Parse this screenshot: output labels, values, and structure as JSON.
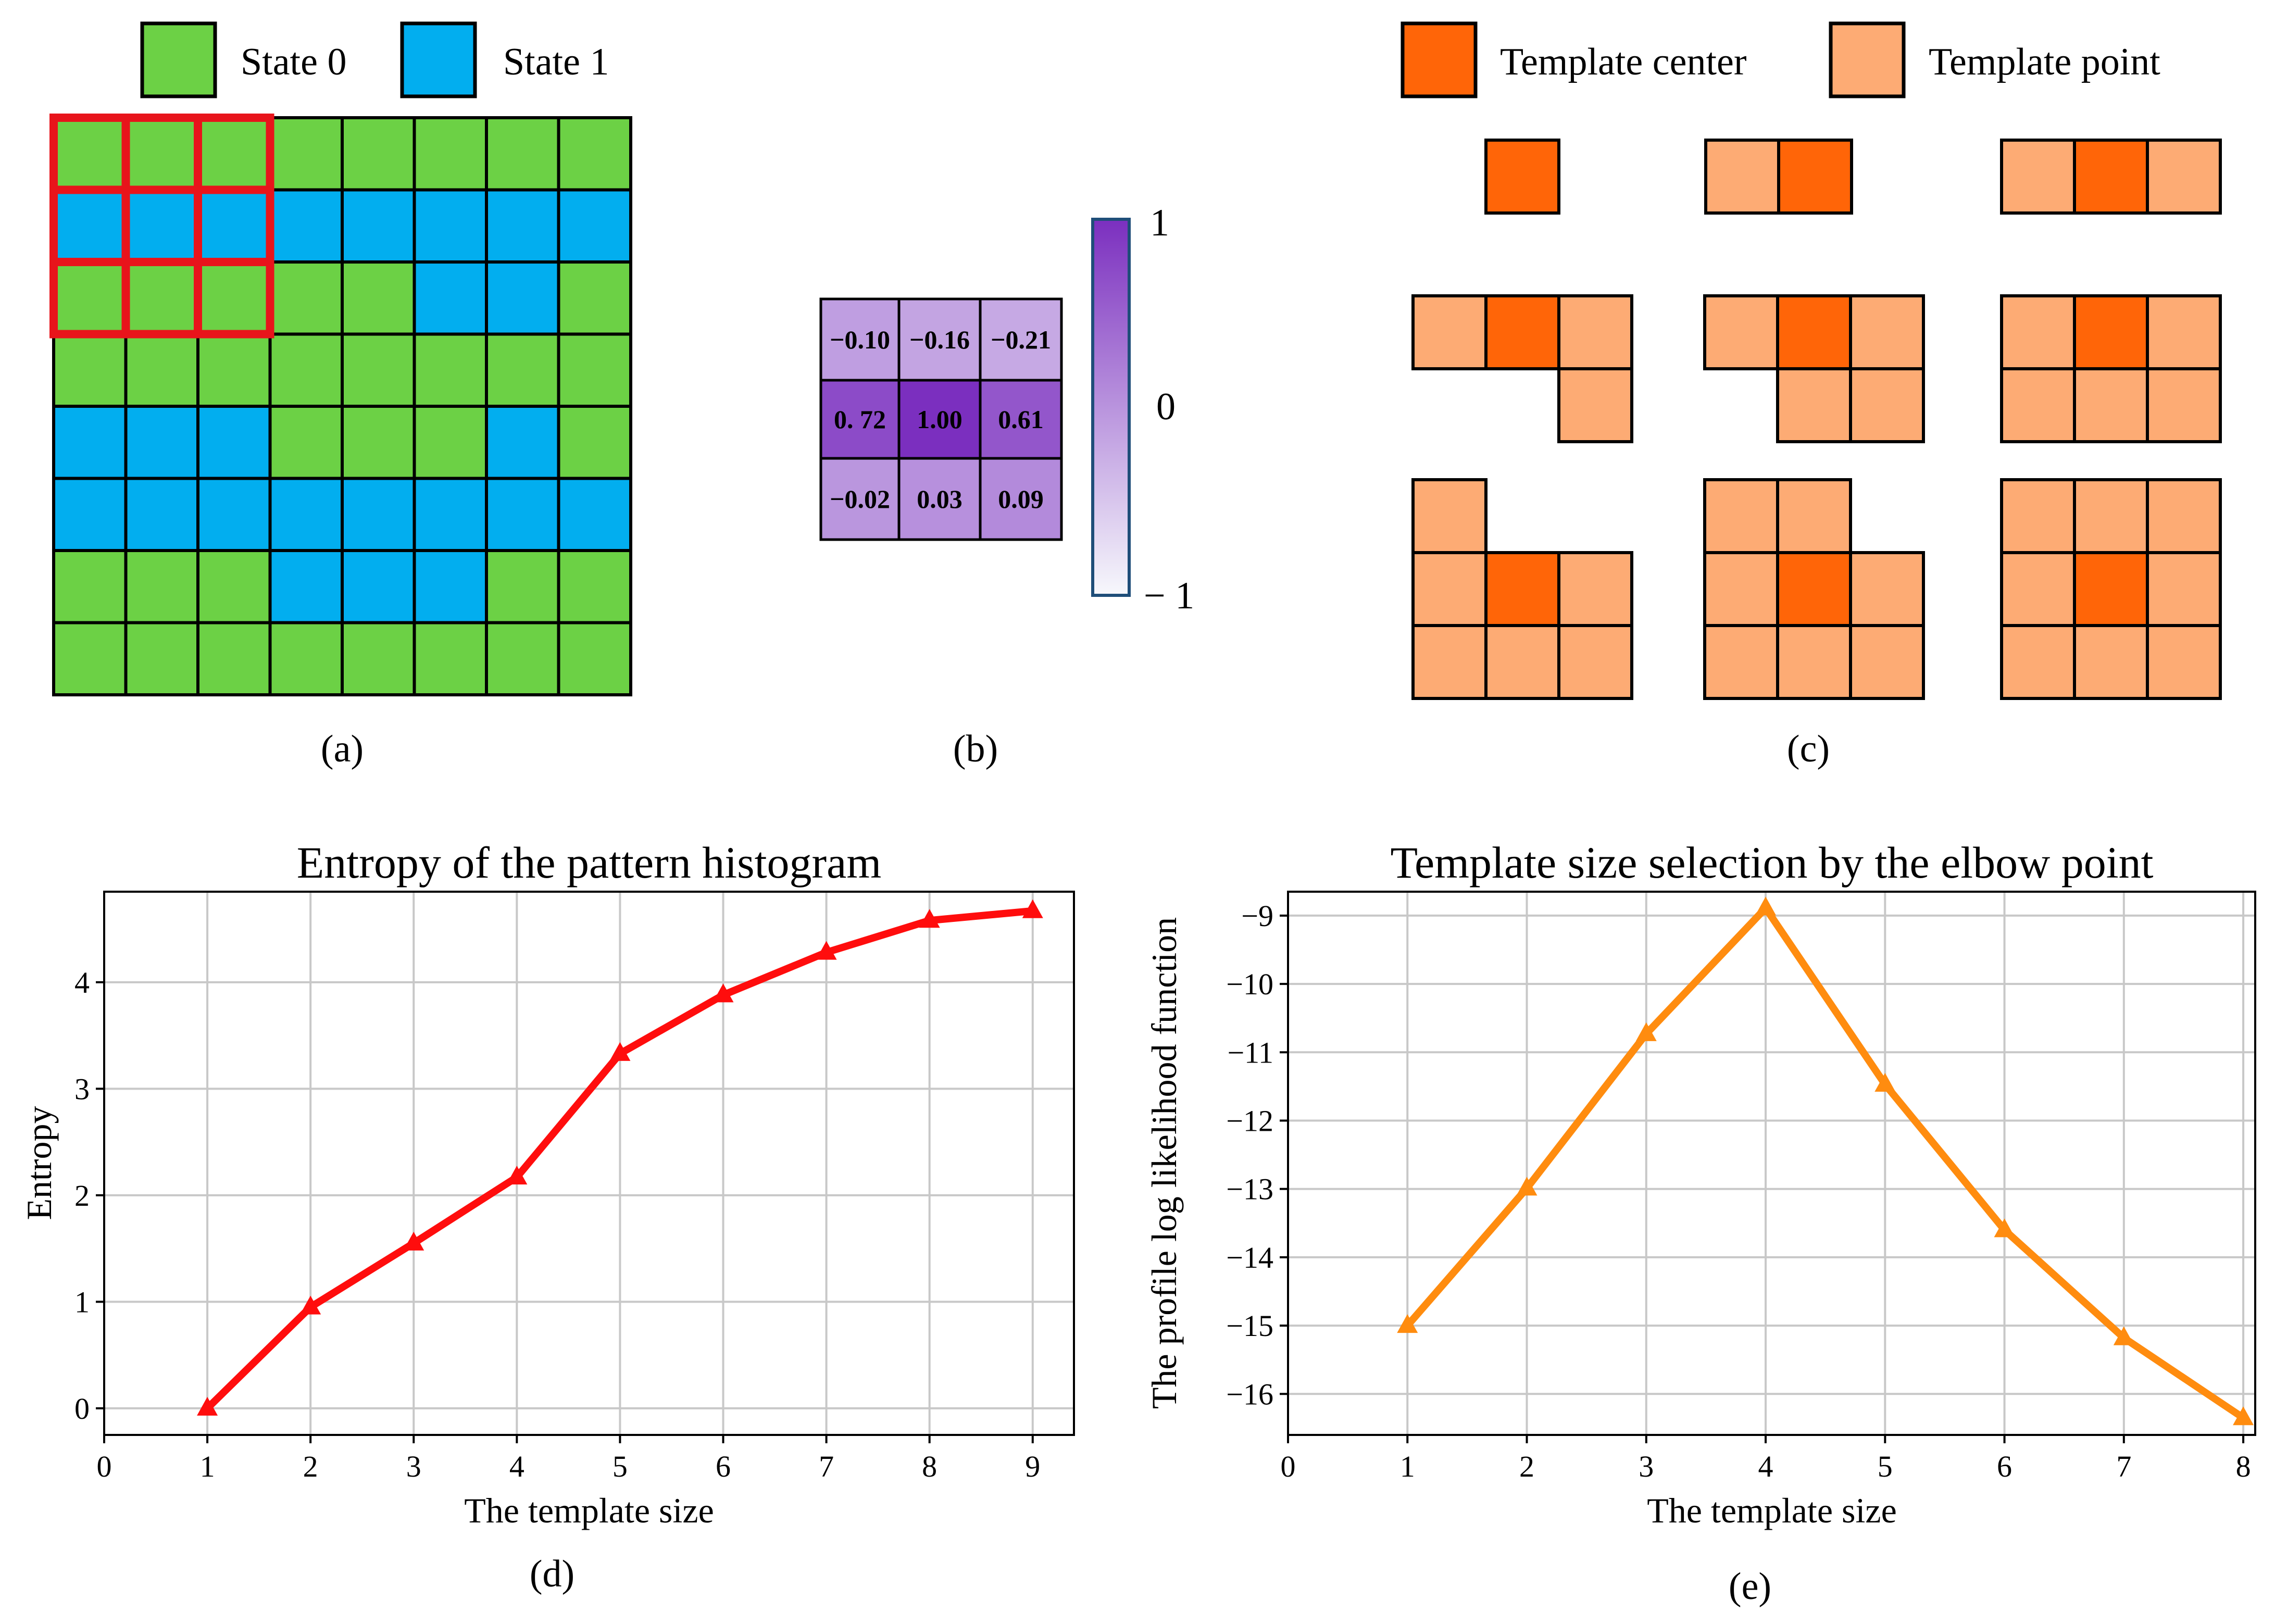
{
  "colors": {
    "state0": "#6cd145",
    "state1": "#02aeef",
    "highlight": "#e8141b",
    "center": "#ff6508",
    "point": "#fdab74",
    "curve_d": "#ff0d0d",
    "curve_e": "#ff8c0f",
    "cb_top": "#7b2fbf",
    "cb_bottom": "#f7f8fc",
    "cb_frame": "#1f4e79"
  },
  "panel_a": {
    "caption": "(a)",
    "legend": [
      "State 0",
      "State 1"
    ],
    "grid": [
      [
        0,
        0,
        0,
        0,
        0,
        0,
        0,
        0
      ],
      [
        1,
        1,
        1,
        1,
        1,
        1,
        1,
        1
      ],
      [
        0,
        0,
        0,
        0,
        0,
        1,
        1,
        0
      ],
      [
        0,
        0,
        0,
        0,
        0,
        0,
        0,
        0
      ],
      [
        1,
        1,
        1,
        0,
        0,
        0,
        1,
        0
      ],
      [
        1,
        1,
        1,
        1,
        1,
        1,
        1,
        1
      ],
      [
        0,
        0,
        0,
        1,
        1,
        1,
        0,
        0
      ],
      [
        0,
        0,
        0,
        0,
        0,
        0,
        0,
        0
      ]
    ],
    "highlight_size": 3
  },
  "panel_b": {
    "caption": "(b)",
    "matrix_labels": [
      [
        "−0.10",
        "−0.16",
        "−0.21"
      ],
      [
        "0. 72",
        "1.00",
        "0.61"
      ],
      [
        "−0.02",
        "0.03",
        "0.09"
      ]
    ],
    "matrix_values": [
      [
        -0.1,
        -0.16,
        -0.21
      ],
      [
        0.72,
        1.0,
        0.61
      ],
      [
        -0.02,
        0.03,
        0.09
      ]
    ],
    "colorbar": {
      "max_label": "1",
      "mid_label": "0",
      "min_label": "− 1",
      "range": [
        -1,
        1
      ]
    }
  },
  "panel_c": {
    "caption": "(c)",
    "legend": [
      "Template center",
      "Template point"
    ],
    "templates": [
      [
        [
          0,
          0,
          "c"
        ]
      ],
      [
        [
          0,
          0,
          "p"
        ],
        [
          0,
          1,
          "c"
        ]
      ],
      [
        [
          0,
          0,
          "p"
        ],
        [
          0,
          1,
          "c"
        ],
        [
          0,
          2,
          "p"
        ]
      ],
      [
        [
          0,
          0,
          "p"
        ],
        [
          0,
          1,
          "c"
        ],
        [
          0,
          2,
          "p"
        ],
        [
          1,
          2,
          "p"
        ]
      ],
      [
        [
          0,
          0,
          "p"
        ],
        [
          0,
          1,
          "c"
        ],
        [
          0,
          2,
          "p"
        ],
        [
          1,
          1,
          "p"
        ],
        [
          1,
          2,
          "p"
        ]
      ],
      [
        [
          0,
          0,
          "p"
        ],
        [
          0,
          1,
          "c"
        ],
        [
          0,
          2,
          "p"
        ],
        [
          1,
          0,
          "p"
        ],
        [
          1,
          1,
          "p"
        ],
        [
          1,
          2,
          "p"
        ]
      ],
      [
        [
          0,
          0,
          "p"
        ],
        [
          1,
          0,
          "p"
        ],
        [
          1,
          1,
          "c"
        ],
        [
          1,
          2,
          "p"
        ],
        [
          2,
          0,
          "p"
        ],
        [
          2,
          1,
          "p"
        ],
        [
          2,
          2,
          "p"
        ]
      ],
      [
        [
          0,
          0,
          "p"
        ],
        [
          0,
          1,
          "p"
        ],
        [
          1,
          0,
          "p"
        ],
        [
          1,
          1,
          "c"
        ],
        [
          1,
          2,
          "p"
        ],
        [
          2,
          0,
          "p"
        ],
        [
          2,
          1,
          "p"
        ],
        [
          2,
          2,
          "p"
        ]
      ],
      [
        [
          0,
          0,
          "p"
        ],
        [
          0,
          1,
          "p"
        ],
        [
          0,
          2,
          "p"
        ],
        [
          1,
          0,
          "p"
        ],
        [
          1,
          1,
          "c"
        ],
        [
          1,
          2,
          "p"
        ],
        [
          2,
          0,
          "p"
        ],
        [
          2,
          1,
          "p"
        ],
        [
          2,
          2,
          "p"
        ]
      ]
    ]
  },
  "chart_data": [
    {
      "type": "line",
      "caption": "(d)",
      "title": "Entropy of the pattern histogram",
      "xlabel": "The template size",
      "ylabel": "Entropy",
      "x": [
        1,
        2,
        3,
        4,
        5,
        6,
        7,
        8,
        9
      ],
      "y": [
        0.0,
        0.95,
        1.55,
        2.17,
        3.33,
        3.88,
        4.28,
        4.58,
        4.67
      ],
      "xlim": [
        0,
        9.4
      ],
      "ylim": [
        -0.25,
        4.85
      ],
      "xticks": [
        0,
        1,
        2,
        3,
        4,
        5,
        6,
        7,
        8,
        9
      ],
      "yticks": [
        0,
        1,
        2,
        3,
        4
      ],
      "marker": "triangle",
      "grid": true
    },
    {
      "type": "line",
      "caption": "(e)",
      "title": "Template size selection by the elbow point",
      "xlabel": "The template size",
      "ylabel": "The profile log likelihood function",
      "x": [
        1,
        2,
        3,
        4,
        5,
        6,
        7,
        8
      ],
      "y": [
        -15.0,
        -12.99,
        -10.73,
        -8.89,
        -11.47,
        -13.6,
        -15.18,
        -16.35
      ],
      "xlim": [
        0,
        8.1
      ],
      "ylim": [
        -16.6,
        -8.65
      ],
      "xticks": [
        0,
        1,
        2,
        3,
        4,
        5,
        6,
        7,
        8
      ],
      "yticks": [
        -16,
        -15,
        -14,
        -13,
        -12,
        -11,
        -10,
        -9
      ],
      "ytick_labels": [
        "−16",
        "−15",
        "−14",
        "−13",
        "−12",
        "−11",
        "−10",
        "−9"
      ],
      "marker": "triangle",
      "grid": true
    }
  ]
}
